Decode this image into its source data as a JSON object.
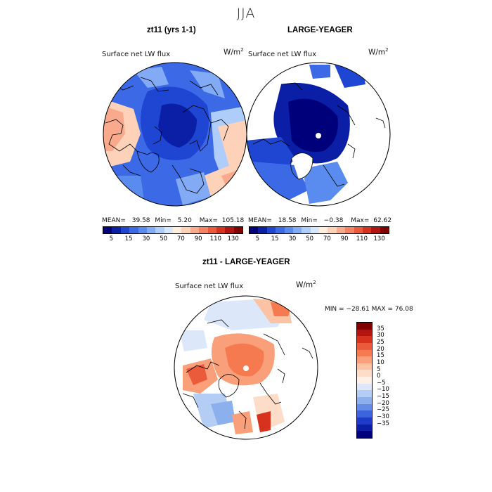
{
  "header": {
    "season": "JJA"
  },
  "panels": [
    {
      "title": "zt11 (yrs 1-1)",
      "variable": "Surface net LW flux",
      "unit_base": "W/m",
      "unit_exp": "2",
      "stats": {
        "mean_label": "MEAN=",
        "mean": "39.58",
        "min_label": "Min=",
        "min": "5.20",
        "max_label": "Max=",
        "max": "105.18"
      }
    },
    {
      "title": "LARGE-YEAGER",
      "variable": "Surface net LW flux",
      "unit_base": "W/m",
      "unit_exp": "2",
      "stats": {
        "mean_label": "MEAN=",
        "mean": "18.58",
        "min_label": "Min=",
        "min": "−0.38",
        "max_label": "Max=",
        "max": "62.62"
      }
    },
    {
      "title": "zt11 - LARGE-YEAGER",
      "variable": "Surface net LW flux",
      "unit_base": "W/m",
      "unit_exp": "2",
      "minmax": "MIN = −28.61 MAX =  76.08"
    }
  ],
  "colorbar_abs": {
    "colors": [
      "#00007a",
      "#0a1ea6",
      "#1e46d2",
      "#3c6ae6",
      "#5a8cf0",
      "#82aaf5",
      "#afcdfa",
      "#d7e8fc",
      "#fff0e1",
      "#fdd2b9",
      "#f9aa8c",
      "#f58264",
      "#ec5a3c",
      "#d7321e",
      "#b41410",
      "#800000"
    ],
    "labels": [
      "5",
      "15",
      "30",
      "50",
      "70",
      "90",
      "110",
      "130"
    ]
  },
  "colorbar_diff": {
    "colors": [
      "#800000",
      "#b41410",
      "#d7321e",
      "#ec5a3c",
      "#f57a50",
      "#f9a07a",
      "#fbc3a3",
      "#fddcc8",
      "#fff0e6",
      "#dce8fa",
      "#b4cdf5",
      "#8cafee",
      "#648ce6",
      "#3c64dc",
      "#1e3cc8",
      "#0a1ea6",
      "#00007a"
    ],
    "labels": [
      "35",
      "30",
      "25",
      "20",
      "15",
      "10",
      "5",
      "0",
      "−5",
      "−10",
      "−15",
      "−20",
      "−25",
      "−30",
      "−35"
    ]
  }
}
